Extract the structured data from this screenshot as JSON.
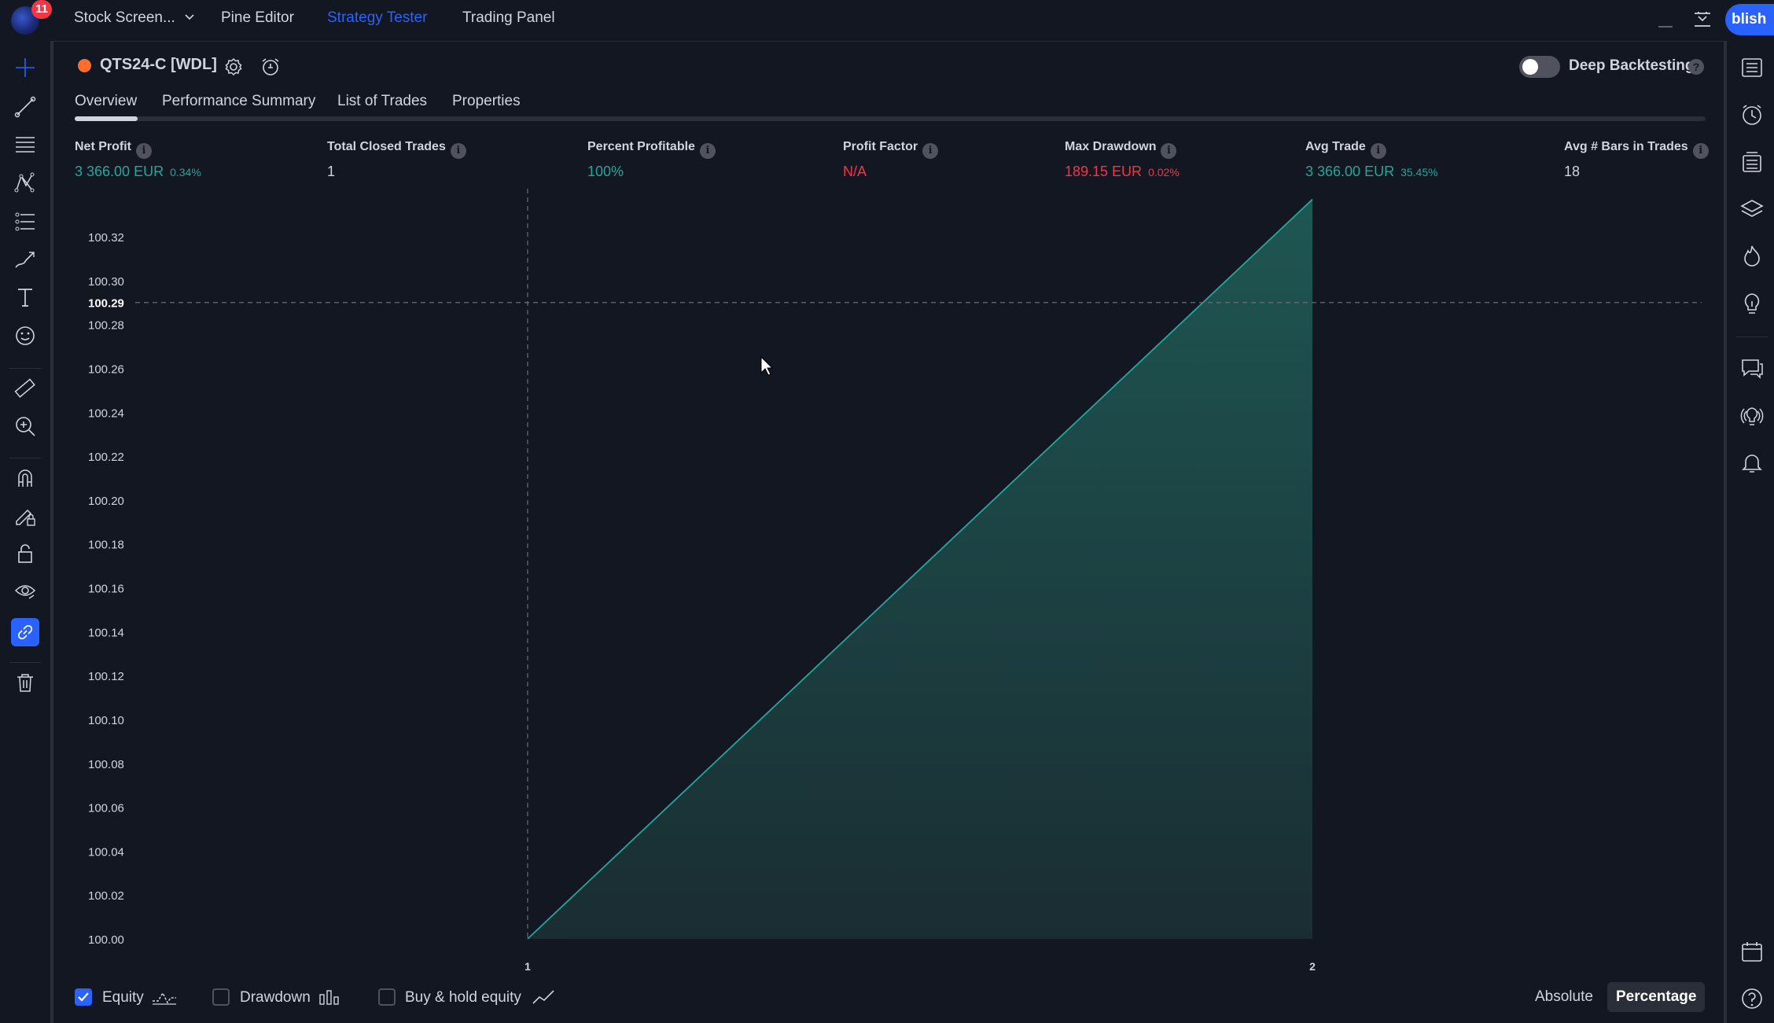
{
  "topbar": {
    "badge_count": "11",
    "tabs": [
      {
        "label": "Stock Screen...",
        "active": false
      },
      {
        "label": "Pine Editor",
        "active": false
      },
      {
        "label": "Strategy Tester",
        "active": true
      },
      {
        "label": "Trading Panel",
        "active": false
      }
    ],
    "publish_label": "blish"
  },
  "left_toolbar": {
    "tools": [
      "crosshair-icon",
      "trend-line-icon",
      "fib-retracement-icon",
      "pattern-icon",
      "prediction-icon",
      "brush-icon",
      "text-icon",
      "emoji-icon",
      "ruler-icon",
      "zoom-in-icon",
      "magnet-icon",
      "lock-drawing-icon",
      "lock-icon",
      "eye-icon",
      "link-icon",
      "trash-icon"
    ],
    "active_tool": "link-icon"
  },
  "right_sidebar": {
    "tools": [
      "watchlist-icon",
      "alerts-clock-icon",
      "data-window-icon",
      "layers-icon",
      "hotlist-icon",
      "ideas-icon",
      "chat-icon",
      "streams-icon",
      "notifications-icon",
      "calendar-icon",
      "help-icon"
    ]
  },
  "strategy": {
    "name": "QTS24-C [WDL]",
    "status_color": "#ff6d2e",
    "deep_backtesting_label": "Deep Backtesting",
    "deep_backtesting_on": false,
    "help_glyph": "?"
  },
  "subtabs": [
    "Overview",
    "Performance Summary",
    "List of Trades",
    "Properties"
  ],
  "active_subtab": "Overview",
  "metrics": {
    "info_glyph": "i",
    "net_profit": {
      "label": "Net Profit",
      "value": "3 366.00 EUR",
      "sub": "0.34%"
    },
    "total_closed_trades": {
      "label": "Total Closed Trades",
      "value": "1"
    },
    "percent_profitable": {
      "label": "Percent Profitable",
      "value": "100%"
    },
    "profit_factor": {
      "label": "Profit Factor",
      "value": "N/A"
    },
    "max_drawdown": {
      "label": "Max Drawdown",
      "value": "189.15 EUR",
      "sub": "0.02%"
    },
    "avg_trade": {
      "label": "Avg Trade",
      "value": "3 366.00 EUR",
      "sub": "35.45%"
    },
    "avg_bars": {
      "label": "Avg # Bars in Trades",
      "value": "18"
    }
  },
  "chart_data": {
    "type": "area",
    "x": [
      1,
      2
    ],
    "x_tick_labels": [
      "1",
      "2"
    ],
    "series": [
      {
        "values": [
          100.0,
          100.337
        ]
      }
    ],
    "y_ticks": [
      100.0,
      100.02,
      100.04,
      100.06,
      100.08,
      100.1,
      100.12,
      100.14,
      100.16,
      100.18,
      100.2,
      100.22,
      100.24,
      100.26,
      100.28,
      100.3,
      100.32
    ],
    "y_tick_labels": [
      "100.00",
      "100.02",
      "100.04",
      "100.06",
      "100.08",
      "100.10",
      "100.12",
      "100.14",
      "100.16",
      "100.18",
      "100.20",
      "100.22",
      "100.24",
      "100.26",
      "100.28",
      "100.30",
      "100.32"
    ],
    "crosshair": {
      "x": 1,
      "y": 100.29,
      "y_label": "100.29"
    },
    "line_color": "#26a69a",
    "fill_color": "#1b4a47"
  },
  "bottom": {
    "equity": {
      "label": "Equity",
      "checked": true
    },
    "drawdown": {
      "label": "Drawdown",
      "checked": false
    },
    "buy_hold": {
      "label": "Buy & hold equity",
      "checked": false
    },
    "absolute_label": "Absolute",
    "percentage_label": "Percentage",
    "selected_mode": "Percentage"
  },
  "colors": {
    "accent": "#2962ff",
    "profit": "#26a69a",
    "loss": "#f23645",
    "background": "#131722"
  }
}
